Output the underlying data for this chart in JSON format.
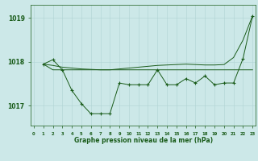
{
  "x_data": [
    0,
    1,
    2,
    3,
    4,
    5,
    6,
    7,
    8,
    9,
    10,
    11,
    12,
    13,
    14,
    15,
    16,
    17,
    18,
    19,
    20,
    21,
    22,
    23
  ],
  "y_zigzag": [
    1017.95,
    1018.05,
    1017.82,
    1017.35,
    1017.05,
    1016.82,
    1016.82,
    1016.82,
    1017.52,
    1017.48,
    1017.48,
    1017.48,
    1017.82,
    1017.48,
    1017.48,
    1017.62,
    1017.52,
    1017.68,
    1017.48,
    1017.52,
    1017.52,
    1018.08,
    1019.05
  ],
  "x_zigzag": [
    1,
    2,
    3,
    4,
    5,
    6,
    7,
    8,
    9,
    10,
    11,
    12,
    13,
    14,
    15,
    16,
    17,
    18,
    19,
    20,
    21,
    22,
    23
  ],
  "y_flat": [
    1017.95,
    1017.82,
    1017.82,
    1017.82,
    1017.82,
    1017.82,
    1017.82,
    1017.82,
    1017.82,
    1017.82,
    1017.82,
    1017.82,
    1017.82,
    1017.82,
    1017.82,
    1017.82,
    1017.82,
    1017.82,
    1017.82,
    1017.82,
    1017.82,
    1017.82,
    1017.82
  ],
  "x_flat": [
    1,
    2,
    3,
    4,
    5,
    6,
    7,
    8,
    9,
    10,
    11,
    12,
    13,
    14,
    15,
    16,
    17,
    18,
    19,
    20,
    21,
    22,
    23
  ],
  "y_trend": [
    1017.95,
    1017.92,
    1017.88,
    1017.86,
    1017.84,
    1017.83,
    1017.82,
    1017.82,
    1017.84,
    1017.86,
    1017.88,
    1017.9,
    1017.92,
    1017.93,
    1017.94,
    1017.95,
    1017.94,
    1017.93,
    1017.93,
    1017.94,
    1018.1,
    1018.5,
    1019.05
  ],
  "x_trend": [
    1,
    2,
    3,
    4,
    5,
    6,
    7,
    8,
    9,
    10,
    11,
    12,
    13,
    14,
    15,
    16,
    17,
    18,
    19,
    20,
    21,
    22,
    23
  ],
  "ylim": [
    1016.55,
    1019.3
  ],
  "yticks": [
    1017.0,
    1018.0,
    1019.0
  ],
  "xlim": [
    -0.3,
    23.3
  ],
  "xticks": [
    0,
    1,
    2,
    3,
    4,
    5,
    6,
    7,
    8,
    9,
    10,
    11,
    12,
    13,
    14,
    15,
    16,
    17,
    18,
    19,
    20,
    21,
    22,
    23
  ],
  "xlabel": "Graphe pression niveau de la mer (hPa)",
  "bg_color": "#cce8e8",
  "line_color": "#1a5c1a",
  "grid_color": "#b0d4d4",
  "text_color": "#1a5c1a"
}
